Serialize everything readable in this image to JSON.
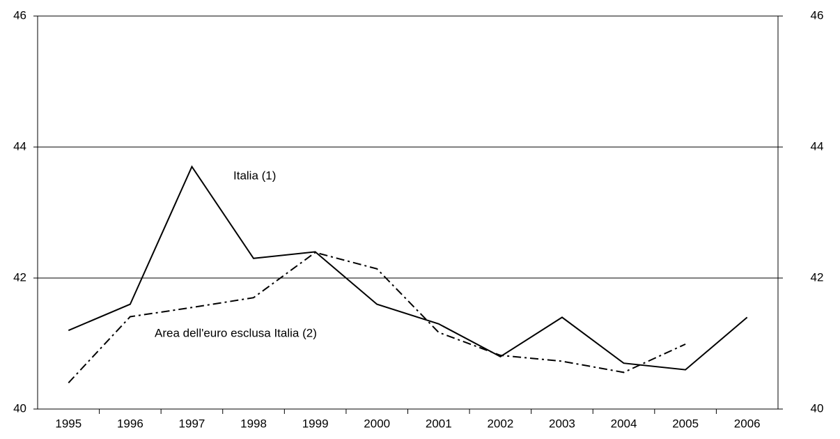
{
  "chart_data": {
    "type": "line",
    "categories": [
      "1995",
      "1996",
      "1997",
      "1998",
      "1999",
      "2000",
      "2001",
      "2002",
      "2003",
      "2004",
      "2005",
      "2006"
    ],
    "series": [
      {
        "name": "Italia (1)",
        "color": "#000000",
        "style": "solid",
        "values": [
          41.2,
          41.6,
          43.7,
          42.3,
          42.4,
          41.6,
          41.3,
          40.8,
          41.4,
          40.7,
          40.6,
          41.4
        ]
      },
      {
        "name": "Area dell'euro esclusa Italia (2)",
        "color": "#000000",
        "style": "dashdot",
        "values": [
          40.4,
          41.41,
          41.55,
          41.7,
          42.39,
          42.14,
          41.17,
          40.82,
          40.73,
          40.56,
          40.99,
          null
        ]
      }
    ],
    "ylim": [
      40,
      46
    ],
    "yticks": [
      40,
      42,
      44,
      46
    ],
    "y2lim": [
      40,
      46
    ],
    "y2ticks": [
      40,
      42,
      44,
      46
    ],
    "grid": true
  }
}
